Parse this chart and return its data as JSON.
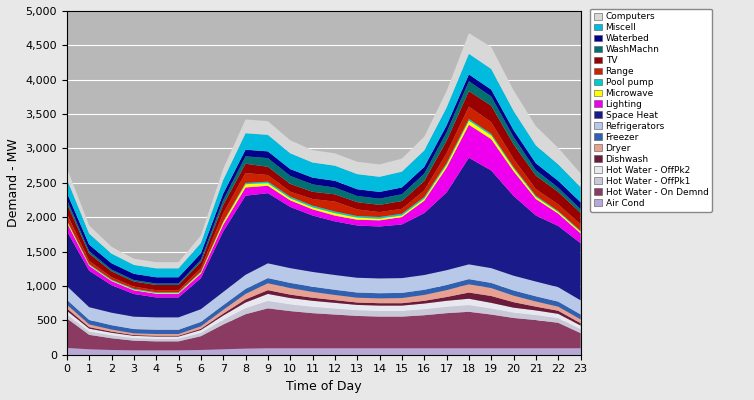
{
  "xlabel": "Time of Day",
  "ylabel": "Demand - MW",
  "ylim": [
    0,
    5000
  ],
  "yticks": [
    0,
    500,
    1000,
    1500,
    2000,
    2500,
    3000,
    3500,
    4000,
    4500,
    5000
  ],
  "xticks": [
    0,
    1,
    2,
    3,
    4,
    5,
    6,
    7,
    8,
    9,
    10,
    11,
    12,
    13,
    14,
    15,
    16,
    17,
    18,
    19,
    20,
    21,
    22,
    23
  ],
  "hours": [
    0,
    1,
    2,
    3,
    4,
    5,
    6,
    7,
    8,
    9,
    10,
    11,
    12,
    13,
    14,
    15,
    16,
    17,
    18,
    19,
    20,
    21,
    22,
    23
  ],
  "layers": {
    "Air Cond": [
      100,
      80,
      70,
      65,
      65,
      65,
      70,
      80,
      90,
      95,
      95,
      95,
      95,
      95,
      95,
      95,
      95,
      95,
      95,
      95,
      95,
      95,
      95,
      95
    ],
    "Hot Water - On Demnd": [
      430,
      210,
      170,
      140,
      130,
      130,
      200,
      360,
      500,
      580,
      540,
      510,
      490,
      470,
      460,
      460,
      480,
      510,
      530,
      490,
      440,
      410,
      370,
      220
    ],
    "Hot Water - OffPk1": [
      55,
      45,
      40,
      35,
      35,
      35,
      45,
      65,
      85,
      105,
      95,
      90,
      85,
      80,
      80,
      80,
      85,
      90,
      95,
      85,
      75,
      70,
      65,
      55
    ],
    "Hot Water - OffPk2": [
      55,
      45,
      40,
      35,
      35,
      35,
      45,
      65,
      85,
      105,
      95,
      90,
      85,
      80,
      80,
      80,
      85,
      90,
      95,
      85,
      75,
      70,
      65,
      55
    ],
    "Dishwash": [
      35,
      22,
      17,
      12,
      12,
      12,
      18,
      28,
      45,
      55,
      50,
      45,
      40,
      35,
      35,
      35,
      40,
      55,
      90,
      100,
      80,
      55,
      45,
      35
    ],
    "Dryer": [
      55,
      40,
      30,
      25,
      25,
      25,
      35,
      55,
      80,
      100,
      95,
      85,
      75,
      70,
      70,
      75,
      85,
      100,
      120,
      115,
      95,
      75,
      60,
      55
    ],
    "Freezer": [
      70,
      65,
      63,
      62,
      62,
      62,
      65,
      68,
      73,
      75,
      75,
      75,
      75,
      75,
      75,
      75,
      75,
      75,
      75,
      75,
      75,
      75,
      73,
      72
    ],
    "Refrigerators": [
      200,
      185,
      182,
      180,
      180,
      180,
      185,
      192,
      205,
      215,
      215,
      215,
      215,
      215,
      215,
      215,
      215,
      215,
      215,
      215,
      215,
      215,
      210,
      205
    ],
    "Space Heat": [
      800,
      530,
      400,
      330,
      290,
      290,
      450,
      880,
      1150,
      1020,
      890,
      820,
      780,
      760,
      755,
      780,
      900,
      1130,
      1550,
      1420,
      1160,
      960,
      890,
      830
    ],
    "Lighting": [
      120,
      72,
      60,
      54,
      54,
      54,
      66,
      96,
      120,
      108,
      96,
      90,
      84,
      84,
      90,
      108,
      180,
      360,
      480,
      456,
      360,
      240,
      180,
      144
    ],
    "Microwave": [
      25,
      12,
      10,
      10,
      10,
      10,
      18,
      36,
      48,
      36,
      30,
      30,
      36,
      30,
      24,
      24,
      30,
      42,
      60,
      54,
      42,
      30,
      24,
      24
    ],
    "Pool pump": [
      12,
      12,
      12,
      12,
      12,
      12,
      12,
      12,
      18,
      24,
      24,
      24,
      24,
      24,
      24,
      24,
      24,
      24,
      24,
      24,
      18,
      18,
      14,
      12
    ],
    "Range": [
      95,
      48,
      36,
      30,
      30,
      30,
      48,
      120,
      144,
      96,
      72,
      96,
      144,
      96,
      72,
      72,
      96,
      144,
      180,
      168,
      120,
      96,
      96,
      96
    ],
    "TV": [
      150,
      105,
      83,
      75,
      75,
      75,
      90,
      120,
      135,
      120,
      113,
      105,
      105,
      105,
      105,
      113,
      135,
      180,
      225,
      240,
      210,
      195,
      180,
      165
    ],
    "WashMachn": [
      55,
      36,
      27,
      22,
      22,
      22,
      36,
      72,
      108,
      126,
      117,
      108,
      99,
      90,
      90,
      99,
      108,
      126,
      144,
      135,
      108,
      81,
      63,
      55
    ],
    "Waterbed": [
      100,
      94,
      91,
      90,
      90,
      90,
      91,
      94,
      96,
      98,
      98,
      98,
      98,
      98,
      98,
      98,
      98,
      98,
      99,
      99,
      99,
      99,
      99,
      100
    ],
    "Miscell": [
      200,
      160,
      140,
      130,
      130,
      130,
      150,
      200,
      240,
      240,
      230,
      220,
      220,
      220,
      220,
      230,
      240,
      260,
      300,
      300,
      280,
      260,
      240,
      220
    ],
    "Computers": [
      160,
      120,
      100,
      90,
      90,
      90,
      110,
      160,
      200,
      200,
      190,
      180,
      180,
      180,
      180,
      190,
      200,
      240,
      300,
      320,
      300,
      280,
      240,
      200
    ]
  },
  "colors": {
    "Air Cond": "#b8a8d8",
    "Hot Water - On Demnd": "#8b3a62",
    "Hot Water - OffPk1": "#c8c8d8",
    "Hot Water - OffPk2": "#e8e8f0",
    "Dishwash": "#6b1a3a",
    "Dryer": "#e8a090",
    "Freezer": "#3060b0",
    "Refrigerators": "#b8c8e8",
    "Space Heat": "#1a1a8b",
    "Lighting": "#ee00ee",
    "Microwave": "#ffff00",
    "Pool pump": "#00cccc",
    "Range": "#cc2200",
    "TV": "#990000",
    "WashMachn": "#007070",
    "Waterbed": "#00008b",
    "Miscell": "#00bbdd",
    "Computers": "#d8d8d8"
  },
  "plot_bg": "#b8b8b8",
  "fig_bg": "#e8e8e8",
  "legend_order": [
    "Computers",
    "Miscell",
    "Waterbed",
    "WashMachn",
    "TV",
    "Range",
    "Pool pump",
    "Microwave",
    "Lighting",
    "Space Heat",
    "Refrigerators",
    "Freezer",
    "Dryer",
    "Dishwash",
    "Hot Water - OffPk2",
    "Hot Water - OffPk1",
    "Hot Water - On Demnd",
    "Air Cond"
  ]
}
